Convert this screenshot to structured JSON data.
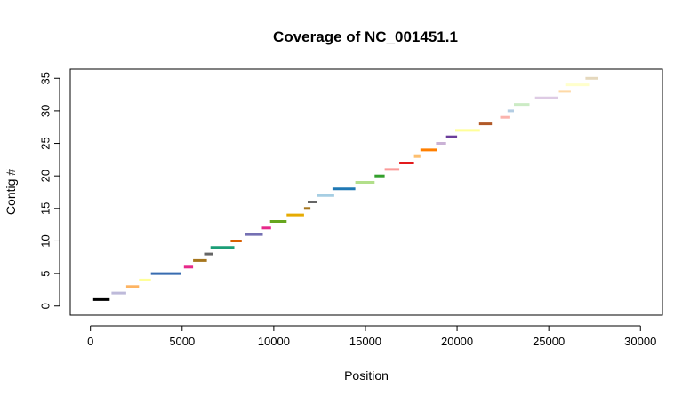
{
  "chart_data": {
    "type": "segments",
    "title": "Coverage of NC_001451.1",
    "xlabel": "Position",
    "ylabel": "Contig #",
    "xlim": [
      -1100,
      31200
    ],
    "ylim": [
      -1.4,
      36.4
    ],
    "x_ticks": [
      0,
      5000,
      10000,
      15000,
      20000,
      25000,
      30000
    ],
    "y_ticks": [
      0,
      5,
      10,
      15,
      20,
      25,
      30,
      35
    ],
    "grid": false,
    "legend": "none",
    "segments": [
      {
        "contig": 1,
        "start": 150,
        "end": 1050,
        "color": "#000000"
      },
      {
        "contig": 2,
        "start": 1150,
        "end": 1950,
        "color": "#BEBADA"
      },
      {
        "contig": 3,
        "start": 1950,
        "end": 2650,
        "color": "#FDB462"
      },
      {
        "contig": 4,
        "start": 2650,
        "end": 3300,
        "color": "#FFFF99"
      },
      {
        "contig": 5,
        "start": 3300,
        "end": 4950,
        "color": "#386CB0"
      },
      {
        "contig": 6,
        "start": 5100,
        "end": 5600,
        "color": "#E7298A"
      },
      {
        "contig": 7,
        "start": 5600,
        "end": 6350,
        "color": "#A6761D"
      },
      {
        "contig": 8,
        "start": 6200,
        "end": 6700,
        "color": "#666666"
      },
      {
        "contig": 9,
        "start": 6550,
        "end": 7850,
        "color": "#1B9E77"
      },
      {
        "contig": 10,
        "start": 7650,
        "end": 8250,
        "color": "#D95F02"
      },
      {
        "contig": 11,
        "start": 8450,
        "end": 9400,
        "color": "#7570B3"
      },
      {
        "contig": 12,
        "start": 9350,
        "end": 9850,
        "color": "#E7298A"
      },
      {
        "contig": 13,
        "start": 9800,
        "end": 10700,
        "color": "#66A61E"
      },
      {
        "contig": 14,
        "start": 10700,
        "end": 11650,
        "color": "#E6AB02"
      },
      {
        "contig": 15,
        "start": 11650,
        "end": 12000,
        "color": "#A6761D"
      },
      {
        "contig": 16,
        "start": 11850,
        "end": 12350,
        "color": "#666666"
      },
      {
        "contig": 17,
        "start": 12350,
        "end": 13300,
        "color": "#A6CEE3"
      },
      {
        "contig": 18,
        "start": 13200,
        "end": 14450,
        "color": "#1F78B4"
      },
      {
        "contig": 19,
        "start": 14450,
        "end": 15500,
        "color": "#B2DF8A"
      },
      {
        "contig": 20,
        "start": 15500,
        "end": 16050,
        "color": "#33A02C"
      },
      {
        "contig": 21,
        "start": 16050,
        "end": 16850,
        "color": "#FB9A99"
      },
      {
        "contig": 22,
        "start": 16850,
        "end": 17650,
        "color": "#E31A1C"
      },
      {
        "contig": 23,
        "start": 17650,
        "end": 18000,
        "color": "#FDBF6F"
      },
      {
        "contig": 24,
        "start": 18000,
        "end": 18900,
        "color": "#FF7F00"
      },
      {
        "contig": 25,
        "start": 18850,
        "end": 19400,
        "color": "#CAB2D6"
      },
      {
        "contig": 26,
        "start": 19400,
        "end": 20000,
        "color": "#6A3D9A"
      },
      {
        "contig": 27,
        "start": 19900,
        "end": 21250,
        "color": "#FFFF99"
      },
      {
        "contig": 28,
        "start": 21200,
        "end": 21900,
        "color": "#B15928"
      },
      {
        "contig": 29,
        "start": 22350,
        "end": 22900,
        "color": "#FBB4AE"
      },
      {
        "contig": 30,
        "start": 22750,
        "end": 23100,
        "color": "#B3CDE3"
      },
      {
        "contig": 31,
        "start": 23100,
        "end": 23950,
        "color": "#CCEBC5"
      },
      {
        "contig": 32,
        "start": 24250,
        "end": 25500,
        "color": "#DECBE4"
      },
      {
        "contig": 33,
        "start": 25550,
        "end": 26200,
        "color": "#FED9A6"
      },
      {
        "contig": 34,
        "start": 25900,
        "end": 27200,
        "color": "#FFFFCC"
      },
      {
        "contig": 35,
        "start": 27000,
        "end": 27700,
        "color": "#E5D8BD"
      }
    ]
  }
}
